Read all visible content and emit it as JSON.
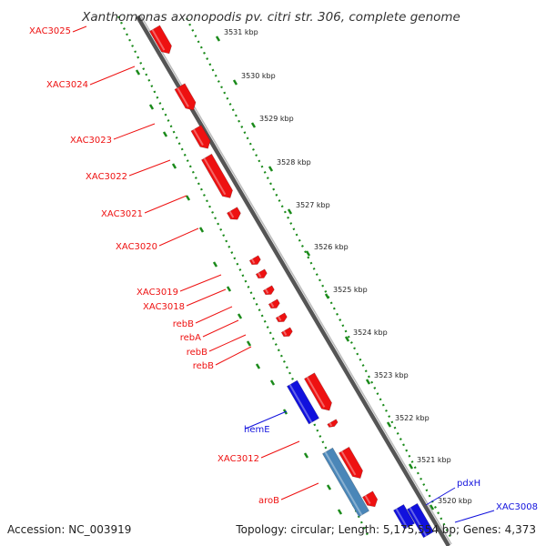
{
  "title": "Xanthomonas axonopodis pv. citri str. 306, complete genome",
  "footer": {
    "accession": "Accession: NC_003919",
    "topology": "Topology: circular; Length: 5,175,554 bp; Genes: 4,373"
  },
  "colors": {
    "forward_strand": "#ee1111",
    "reverse_strand": "#1111dd",
    "rna": "#4a86b8",
    "backbone": "#888888",
    "ruler": "#1a8a1a"
  },
  "ruler": {
    "unit": "kbp",
    "ticks": [
      3531,
      3530,
      3529,
      3528,
      3527,
      3526,
      3525,
      3524,
      3523,
      3522,
      3521,
      3520
    ]
  },
  "genes": [
    {
      "label": "XAC3025",
      "strand": "forward"
    },
    {
      "label": "XAC3024",
      "strand": "forward"
    },
    {
      "label": "XAC3023",
      "strand": "forward"
    },
    {
      "label": "XAC3022",
      "strand": "forward"
    },
    {
      "label": "XAC3021",
      "strand": "forward"
    },
    {
      "label": "XAC3020",
      "strand": "forward"
    },
    {
      "label": "XAC3019",
      "strand": "forward"
    },
    {
      "label": "XAC3018",
      "strand": "forward"
    },
    {
      "label": "rebB",
      "strand": "forward"
    },
    {
      "label": "rebA",
      "strand": "forward"
    },
    {
      "label": "rebB",
      "strand": "forward"
    },
    {
      "label": "rebB",
      "strand": "forward"
    },
    {
      "label": "hemE",
      "strand": "reverse"
    },
    {
      "label": "XAC3012",
      "strand": "forward"
    },
    {
      "label": "aroB",
      "strand": "forward"
    },
    {
      "label": "pdxH",
      "strand": "reverse"
    },
    {
      "label": "XAC3008",
      "strand": "reverse"
    }
  ]
}
